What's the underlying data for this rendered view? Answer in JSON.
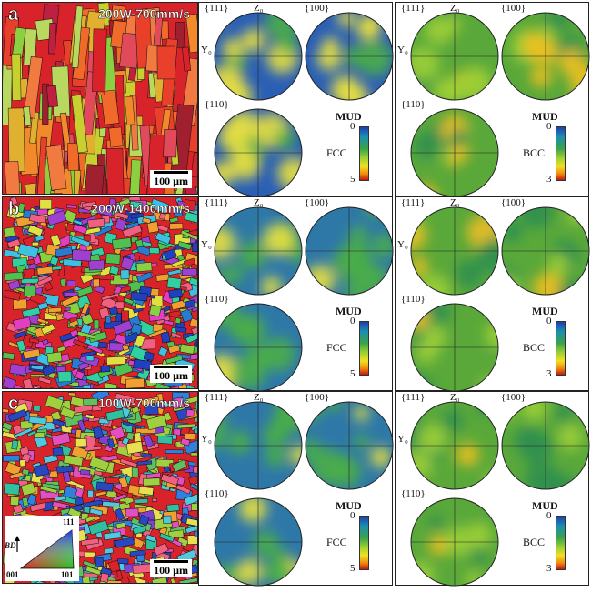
{
  "rows": [
    {
      "letter": "a",
      "condition": "200W-700mm/s",
      "scale": "100 µm",
      "fcc_max": "5",
      "bcc_max": "3"
    },
    {
      "letter": "b",
      "condition": "200W-1400mm/s",
      "scale": "100 µm",
      "fcc_max": "5",
      "bcc_max": "3"
    },
    {
      "letter": "c",
      "condition": "100W-700mm/s",
      "scale": "100 µm",
      "fcc_max": "5",
      "bcc_max": "3"
    }
  ],
  "pf_labels": {
    "p111": "{111}",
    "p100": "{100}",
    "p110": "{110}",
    "z0": "Z₀",
    "y0": "Y₀"
  },
  "mud_label": "MUD",
  "cb_min": "0",
  "phases": {
    "fcc": "FCC",
    "bcc": "BCC"
  },
  "ipf_key": {
    "axis": "BD",
    "v111": "111",
    "v001": "001",
    "v101": "101"
  },
  "colors": {
    "blue": "#2040b0",
    "green": "#3aa14a",
    "yellow": "#f0e020",
    "red": "#c01a10"
  }
}
